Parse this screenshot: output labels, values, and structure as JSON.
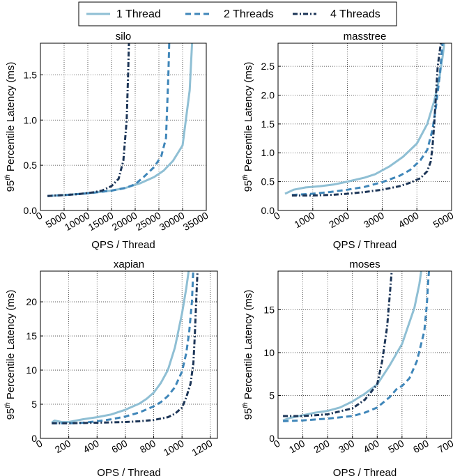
{
  "legend": {
    "placement": "top-center",
    "entries": [
      {
        "label": "1 Thread",
        "color": "#8fbfd4",
        "style": "solid"
      },
      {
        "label": "2 Threads",
        "color": "#3f86b9",
        "style": "dashed"
      },
      {
        "label": "4 Threads",
        "color": "#1c3557",
        "style": "dashdot"
      }
    ]
  },
  "chart_data": [
    {
      "type": "line",
      "title": "silo",
      "xlabel": "QPS / Thread",
      "ylabel": "95th Percentile Latency (ms)",
      "ylabel_main": "95",
      "ylabel_sup": "th",
      "ylabel_rest": " Percentile Latency (ms)",
      "xlim": [
        0,
        35000
      ],
      "ylim": [
        0,
        1.85
      ],
      "xticks": [
        0,
        5000,
        10000,
        15000,
        20000,
        25000,
        30000,
        35000
      ],
      "xtick_labels": [
        "0",
        "5000",
        "10000",
        "15000",
        "20000",
        "25000",
        "30000",
        "35000"
      ],
      "yticks": [
        0,
        0.5,
        1.0,
        1.5
      ],
      "ytick_labels": [
        "0.0",
        "0.5",
        "1.0",
        "1.5"
      ],
      "grid": true,
      "series": [
        {
          "name": "1 Thread",
          "x": [
            1500,
            5000,
            10000,
            15000,
            18000,
            21000,
            24000,
            26000,
            28000,
            30000,
            31500,
            32000,
            32200
          ],
          "y": [
            0.16,
            0.17,
            0.19,
            0.22,
            0.25,
            0.3,
            0.37,
            0.44,
            0.55,
            0.72,
            1.33,
            1.85,
            1.9
          ]
        },
        {
          "name": "2 Threads",
          "x": [
            1500,
            5000,
            10000,
            15000,
            18000,
            20000,
            22000,
            24000,
            25500,
            26500,
            27000,
            27200
          ],
          "y": [
            0.16,
            0.17,
            0.19,
            0.22,
            0.25,
            0.29,
            0.38,
            0.48,
            0.6,
            0.8,
            1.5,
            1.9
          ]
        },
        {
          "name": "4 Threads",
          "x": [
            1500,
            5000,
            8000,
            11000,
            13000,
            15000,
            16500,
            17500,
            18200,
            18500,
            18700
          ],
          "y": [
            0.16,
            0.17,
            0.18,
            0.2,
            0.22,
            0.27,
            0.35,
            0.55,
            1.0,
            1.5,
            1.9
          ]
        }
      ]
    },
    {
      "type": "line",
      "title": "masstree",
      "xlabel": "QPS / Thread",
      "ylabel": "95th Percentile Latency (ms)",
      "ylabel_main": "95",
      "ylabel_sup": "th",
      "ylabel_rest": " Percentile Latency (ms)",
      "xlim": [
        0,
        5000
      ],
      "ylim": [
        0,
        2.9
      ],
      "xticks": [
        0,
        1000,
        2000,
        3000,
        4000,
        5000
      ],
      "xtick_labels": [
        "0",
        "1000",
        "2000",
        "3000",
        "4000",
        "5000"
      ],
      "yticks": [
        0,
        0.5,
        1.0,
        1.5,
        2.0,
        2.5
      ],
      "ytick_labels": [
        "0.0",
        "0.5",
        "1.0",
        "1.5",
        "2.0",
        "2.5"
      ],
      "grid": true,
      "series": [
        {
          "name": "1 Thread",
          "x": [
            200,
            450,
            800,
            1200,
            1600,
            2000,
            2500,
            2800,
            3200,
            3600,
            4000,
            4300,
            4500,
            4650,
            4750,
            4800
          ],
          "y": [
            0.29,
            0.36,
            0.4,
            0.42,
            0.45,
            0.5,
            0.57,
            0.63,
            0.76,
            0.93,
            1.16,
            1.5,
            1.9,
            2.3,
            2.7,
            2.95
          ]
        },
        {
          "name": "2 Threads",
          "x": [
            400,
            1000,
            1500,
            2000,
            2500,
            3000,
            3500,
            3800,
            4100,
            4300,
            4450,
            4550,
            4650,
            4750
          ],
          "y": [
            0.27,
            0.29,
            0.32,
            0.36,
            0.41,
            0.49,
            0.6,
            0.7,
            0.87,
            1.05,
            1.4,
            1.8,
            2.3,
            2.95
          ]
        },
        {
          "name": "4 Threads",
          "x": [
            400,
            1000,
            1500,
            2000,
            2500,
            3000,
            3500,
            3800,
            4100,
            4300,
            4400,
            4450,
            4500,
            4550,
            4600,
            4700
          ],
          "y": [
            0.26,
            0.26,
            0.27,
            0.29,
            0.32,
            0.36,
            0.42,
            0.48,
            0.56,
            0.68,
            0.85,
            1.1,
            1.5,
            2.0,
            2.5,
            2.95
          ]
        }
      ]
    },
    {
      "type": "line",
      "title": "xapian",
      "xlabel": "QPS / Thread",
      "ylabel": "95th Percentile Latency (ms)",
      "ylabel_main": "95",
      "ylabel_sup": "th",
      "ylabel_rest": " Percentile Latency (ms)",
      "xlim": [
        0,
        1250
      ],
      "ylim": [
        0,
        24.5
      ],
      "xticks": [
        0,
        200,
        400,
        600,
        800,
        1000,
        1200
      ],
      "xtick_labels": [
        "0",
        "200",
        "400",
        "600",
        "800",
        "1000",
        "1200"
      ],
      "yticks": [
        0,
        5,
        10,
        15,
        20
      ],
      "ytick_labels": [
        "0",
        "5",
        "10",
        "15",
        "20"
      ],
      "grid": true,
      "series": [
        {
          "name": "1 Thread",
          "x": [
            80,
            100,
            150,
            200,
            300,
            400,
            500,
            600,
            700,
            750,
            800,
            850,
            900,
            950,
            1000,
            1030,
            1050
          ],
          "y": [
            2.3,
            2.6,
            2.4,
            2.4,
            2.8,
            3.1,
            3.5,
            4.2,
            5.1,
            5.8,
            6.7,
            8.1,
            10.0,
            13.3,
            18.3,
            22.0,
            25.0
          ]
        },
        {
          "name": "2 Threads",
          "x": [
            80,
            200,
            300,
            400,
            500,
            600,
            700,
            800,
            850,
            900,
            950,
            1000,
            1030,
            1050,
            1070,
            1080
          ],
          "y": [
            2.2,
            2.2,
            2.3,
            2.5,
            2.8,
            3.2,
            3.8,
            4.7,
            5.3,
            6.2,
            7.5,
            9.8,
            12.5,
            15.5,
            20.0,
            25.0
          ]
        },
        {
          "name": "4 Threads",
          "x": [
            80,
            200,
            400,
            600,
            700,
            800,
            900,
            950,
            1000,
            1030,
            1060,
            1080,
            1090,
            1100,
            1110
          ],
          "y": [
            2.2,
            2.2,
            2.3,
            2.4,
            2.5,
            2.7,
            3.1,
            3.6,
            4.5,
            6.0,
            8.0,
            11.0,
            15.0,
            20.0,
            25.0
          ]
        }
      ]
    },
    {
      "type": "line",
      "title": "moses",
      "xlabel": "QPS / Thread",
      "ylabel": "95th Percentile Latency (ms)",
      "ylabel_main": "95",
      "ylabel_sup": "th",
      "ylabel_rest": " Percentile Latency (ms)",
      "xlim": [
        0,
        700
      ],
      "ylim": [
        0,
        19.5
      ],
      "xticks": [
        0,
        100,
        200,
        300,
        400,
        500,
        600,
        700
      ],
      "xtick_labels": [
        "0",
        "100",
        "200",
        "300",
        "400",
        "500",
        "600",
        "700"
      ],
      "yticks": [
        0,
        5,
        10,
        15
      ],
      "ytick_labels": [
        "0",
        "5",
        "10",
        "15"
      ],
      "grid": true,
      "series": [
        {
          "name": "1 Thread",
          "x": [
            20,
            50,
            100,
            150,
            200,
            250,
            300,
            350,
            400,
            450,
            500,
            550,
            570,
            580
          ],
          "y": [
            2.1,
            2.4,
            2.7,
            3.0,
            3.2,
            3.6,
            4.3,
            5.2,
            6.3,
            8.5,
            11.0,
            15.2,
            18.0,
            20.0
          ]
        },
        {
          "name": "2 Threads",
          "x": [
            20,
            100,
            200,
            300,
            350,
            400,
            450,
            480,
            500,
            530,
            560,
            590,
            600,
            605,
            610
          ],
          "y": [
            2.0,
            2.1,
            2.3,
            2.6,
            3.0,
            3.6,
            4.8,
            5.8,
            6.1,
            7.0,
            9.0,
            12.5,
            15.5,
            18.0,
            20.0
          ]
        },
        {
          "name": "4 Threads",
          "x": [
            20,
            100,
            200,
            300,
            350,
            400,
            420,
            440,
            450,
            460
          ],
          "y": [
            2.6,
            2.6,
            2.8,
            3.5,
            4.5,
            6.3,
            9.0,
            13.0,
            16.5,
            20.0
          ]
        }
      ]
    }
  ]
}
